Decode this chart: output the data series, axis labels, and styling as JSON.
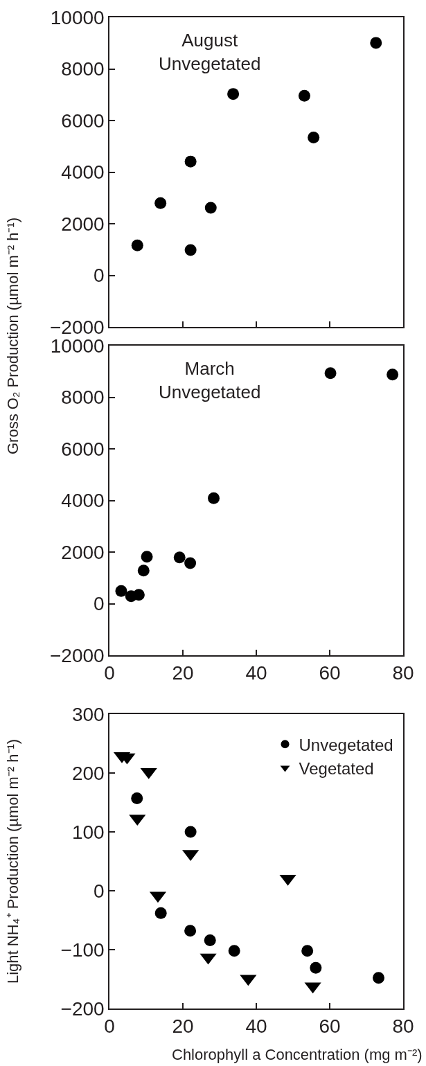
{
  "chart_data": [
    {
      "type": "scatter",
      "ylabel": "Gross O₂ Production (µmol m⁻² h⁻¹)",
      "annotations": [
        "August\nUnvegetated"
      ],
      "xlim": [
        0,
        80
      ],
      "xticks": [
        0,
        20,
        40,
        60,
        80
      ],
      "ylim": [
        -2000,
        10000
      ],
      "yticks": [
        -2000,
        0,
        2000,
        4000,
        6000,
        8000,
        10000
      ],
      "tick_labels": "y",
      "grid": false,
      "legend": false,
      "marker": "circle",
      "series": [
        {
          "color": "#000000",
          "x": [
            7.6,
            13.9,
            22.1,
            22.1,
            27.6,
            33.7,
            53.1,
            55.6,
            72.6
          ],
          "values": [
            1160,
            2800,
            980,
            4410,
            2620,
            7030,
            6960,
            5340,
            9010
          ]
        }
      ]
    },
    {
      "type": "scatter",
      "annotations": [
        "March\nUnvegetated"
      ],
      "xlim": [
        0,
        80
      ],
      "xticks": [
        0,
        20,
        40,
        60,
        80
      ],
      "ylim": [
        -2000,
        10000
      ],
      "yticks": [
        -2000,
        0,
        2000,
        4000,
        6000,
        8000,
        10000
      ],
      "grid": false,
      "legend": false,
      "marker": "circle",
      "series": [
        {
          "color": "#000000",
          "x": [
            3.2,
            5.9,
            8.0,
            9.3,
            10.2,
            19.1,
            22.0,
            28.4,
            60.2,
            77.1
          ],
          "values": [
            490,
            290,
            340,
            1280,
            1820,
            1790,
            1570,
            4090,
            8930,
            8880
          ]
        }
      ]
    },
    {
      "type": "scatter",
      "xlabel": "Chlorophyll a Concentration (mg m⁻²)",
      "ylabel": "Light NH₄⁺ Production (µmol m⁻² h⁻¹)",
      "xlim": [
        0,
        80
      ],
      "xticks": [
        0,
        20,
        40,
        60,
        80
      ],
      "ylim": [
        -200,
        300
      ],
      "yticks": [
        -200,
        -100,
        0,
        100,
        200,
        300
      ],
      "grid": false,
      "legend": "top right",
      "series": [
        {
          "name": "Unvegetated",
          "color": "#000000",
          "marker": "circle",
          "x": [
            7.5,
            22.1,
            14.0,
            22.0,
            27.4,
            34.0,
            53.9,
            56.2,
            73.3
          ],
          "values": [
            157,
            100,
            -38,
            -68,
            -84,
            -102,
            -102,
            -131,
            -148
          ]
        },
        {
          "name": "Vegetated",
          "color": "#000000",
          "marker": "triangle",
          "x": [
            3.4,
            4.8,
            10.7,
            7.6,
            22.1,
            13.2,
            48.6,
            26.9,
            37.8,
            55.4
          ],
          "values": [
            229,
            227,
            202,
            123,
            63,
            -8,
            21,
            -113,
            -149,
            -162
          ]
        }
      ]
    }
  ]
}
